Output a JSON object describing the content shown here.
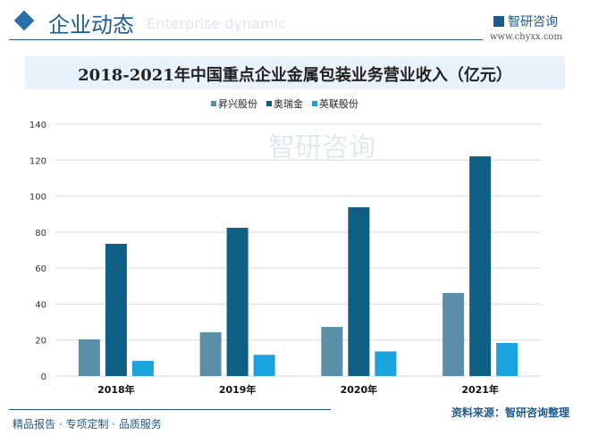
{
  "header": {
    "section_title": "企业动态",
    "section_subtitle": "Enterprise dynamic",
    "brand": "智研咨询",
    "url": "www.chyxx.com"
  },
  "footer": {
    "slogan": "精品报告 · 专项定制 · 品质服务",
    "source": "资料来源：智研咨询整理",
    "watermark": "智研咨询"
  },
  "chart_data": {
    "type": "bar",
    "title": "2018-2021年中国重点企业金属包装业务营业收入（亿元）",
    "categories": [
      "2018年",
      "2019年",
      "2020年",
      "2021年"
    ],
    "series": [
      {
        "name": "昇兴股份",
        "values": [
          20.4,
          24.3,
          27.3,
          46.2
        ],
        "color": "#5b8fa8"
      },
      {
        "name": "奥瑞金",
        "values": [
          73.5,
          82.4,
          93.8,
          122.1
        ],
        "color": "#0f5f85"
      },
      {
        "name": "英联股份",
        "values": [
          8.4,
          11.8,
          13.7,
          18.4
        ],
        "color": "#1aa3dd"
      }
    ],
    "ylim": [
      0,
      140
    ],
    "yticks": [
      0,
      20,
      40,
      60,
      80,
      100,
      120,
      140
    ],
    "grid": true,
    "legend": "top"
  }
}
